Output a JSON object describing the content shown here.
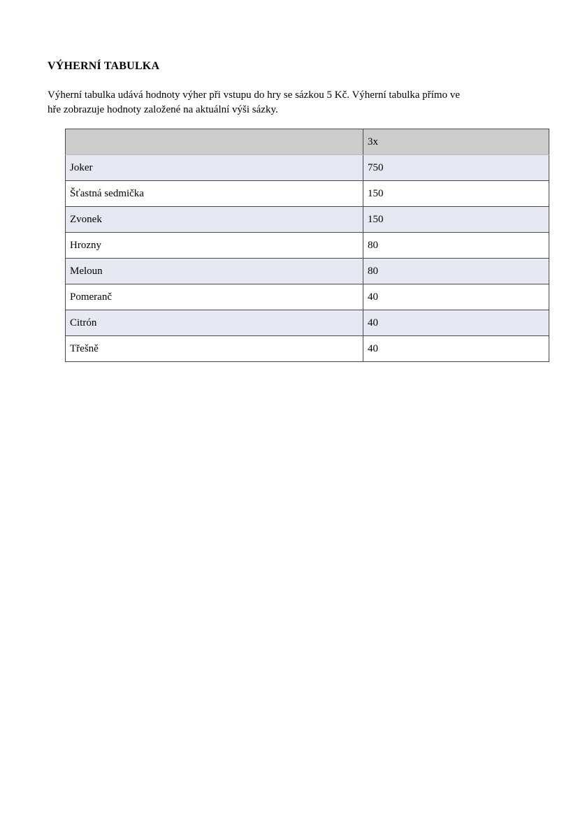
{
  "document": {
    "heading": "VÝHERNÍ TABULKA",
    "intro_lines": [
      "Výherní tabulka udává hodnoty výher při vstupu do hry se sázkou 5 Kč. Výherní tabulka přímo ve",
      "hře zobrazuje hodnoty založené na aktuální výši sázky."
    ]
  },
  "paytable": {
    "column_headers": [
      "",
      "3x"
    ],
    "rows": [
      {
        "symbol": "Joker",
        "payout": "750"
      },
      {
        "symbol": "Šťastná sedmička",
        "payout": "150"
      },
      {
        "symbol": "Zvonek",
        "payout": "150"
      },
      {
        "symbol": "Hrozny",
        "payout": "80"
      },
      {
        "symbol": "Meloun",
        "payout": "80"
      },
      {
        "symbol": "Pomeranč",
        "payout": "40"
      },
      {
        "symbol": "Citrón",
        "payout": "40"
      },
      {
        "symbol": "Třešně",
        "payout": "40"
      }
    ],
    "colors": {
      "header_bg": "#cccccc",
      "alt_row_bg": "#e6e9f2",
      "row_bg": "#ffffff",
      "border": "#47474d",
      "header_divider": "#b8b8c0"
    }
  }
}
